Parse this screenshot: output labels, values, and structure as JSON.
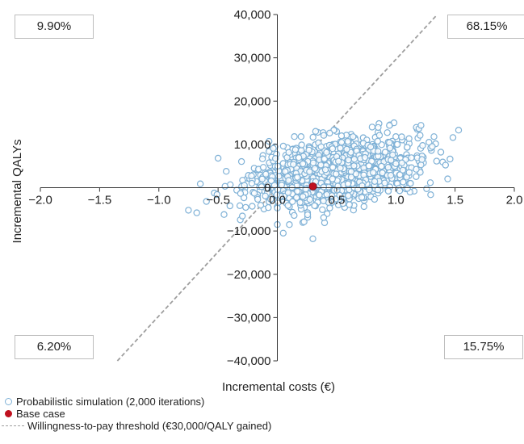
{
  "chart_data": {
    "type": "scatter",
    "xlabel": "Incremental costs (€)",
    "ylabel": "Incremental QALYs",
    "xlim": [
      -2.0,
      2.0
    ],
    "ylim": [
      -40000,
      40000
    ],
    "x_ticks": [
      -2.0,
      -1.5,
      -1.0,
      -0.5,
      0.0,
      0.5,
      1.0,
      1.5,
      2.0
    ],
    "x_tick_labels": [
      "−2.0",
      "−1.5",
      "−1.0",
      "−0.5",
      "0.0",
      "0.5",
      "1.0",
      "1.5",
      "2.0"
    ],
    "y_ticks": [
      -40000,
      -30000,
      -20000,
      -10000,
      0,
      10000,
      20000,
      30000,
      40000
    ],
    "y_tick_labels": [
      "−40,000",
      "−30,000",
      "−20,000",
      "−10,000",
      "0",
      "10,000",
      "20,000",
      "30,000",
      "40,000"
    ],
    "grid": false,
    "quadrant_labels": {
      "top_left": "9.90%",
      "top_right": "68.15%",
      "bottom_left": "6.20%",
      "bottom_right": "15.75%"
    },
    "series": [
      {
        "name": "Probabilistic simulation (2,000 iterations)",
        "kind": "scatter",
        "color": "#7fb1d6",
        "distribution": {
          "n": 2000,
          "mean": [
            0.48,
            3500
          ],
          "sd": [
            0.33,
            3900
          ],
          "correlation": 0.35
        },
        "points": [
          {
            "x": -0.75,
            "y": -5200
          },
          {
            "x": -0.68,
            "y": -5800
          },
          {
            "x": -0.65,
            "y": 900
          },
          {
            "x": -0.5,
            "y": 6800
          },
          {
            "x": -0.45,
            "y": -6200
          },
          {
            "x": -0.4,
            "y": -4200
          },
          {
            "x": 0.0,
            "y": -8500
          },
          {
            "x": 0.05,
            "y": -10500
          },
          {
            "x": 0.2,
            "y": 11800
          },
          {
            "x": 0.3,
            "y": -11800
          },
          {
            "x": 0.42,
            "y": -6000
          },
          {
            "x": 0.5,
            "y": 13000
          },
          {
            "x": 0.8,
            "y": 14000
          },
          {
            "x": 0.85,
            "y": 12800
          },
          {
            "x": 0.95,
            "y": 14500
          },
          {
            "x": 1.0,
            "y": 11800
          },
          {
            "x": 1.18,
            "y": 13500
          },
          {
            "x": 1.2,
            "y": 4000
          },
          {
            "x": 1.28,
            "y": 10500
          },
          {
            "x": 1.3,
            "y": 8600
          },
          {
            "x": 1.38,
            "y": 8200
          },
          {
            "x": 1.53,
            "y": 13300
          }
        ]
      },
      {
        "name": "Base case",
        "kind": "point",
        "color": "#c0111f",
        "points": [
          {
            "x": 0.3,
            "y": 300
          }
        ]
      },
      {
        "name": "Willingness-to-pay threshold (€30,000/QALY gained)",
        "kind": "line",
        "color": "#9e9e9e",
        "points": [
          {
            "x": -1.35,
            "y": -40000
          },
          {
            "x": 1.35,
            "y": 40000
          }
        ]
      }
    ]
  }
}
